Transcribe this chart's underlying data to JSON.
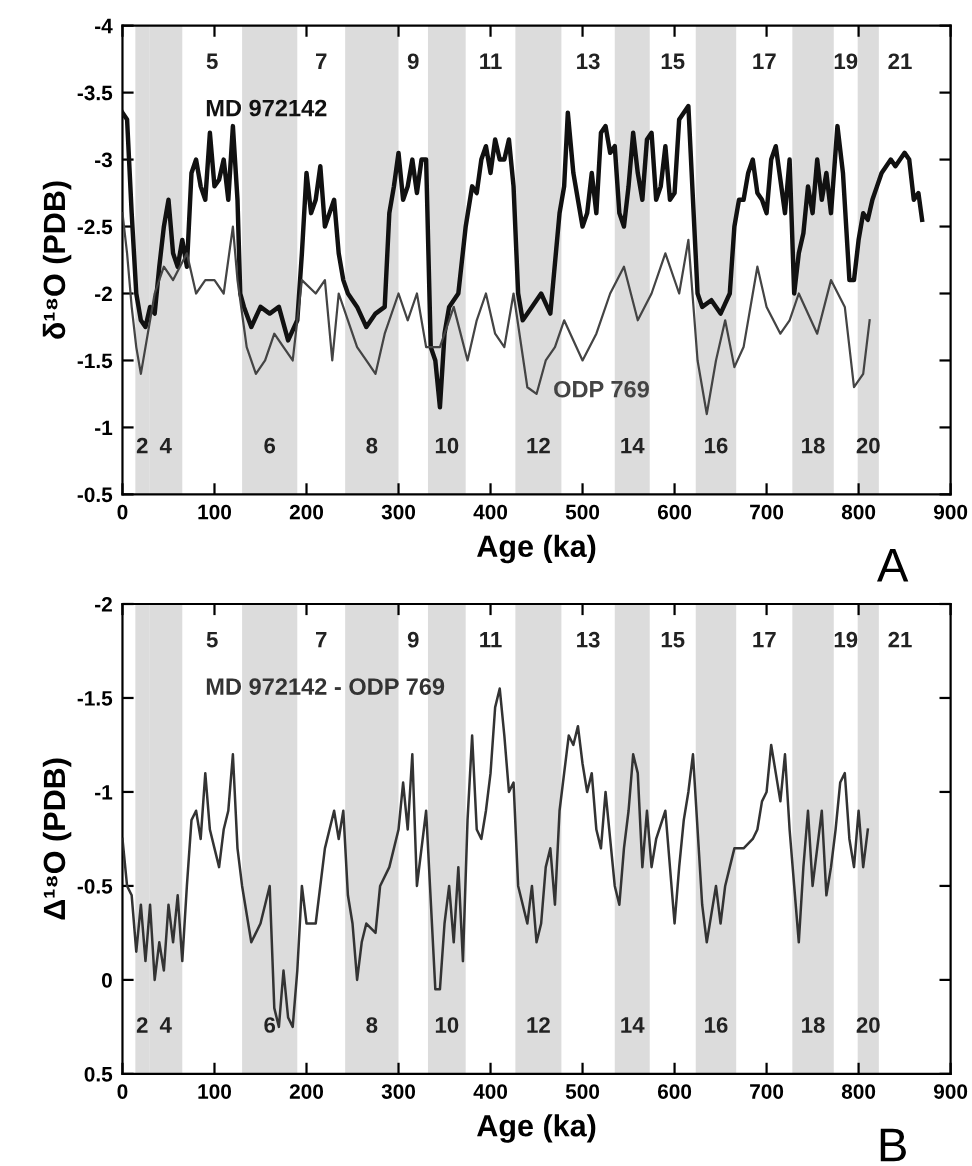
{
  "chart_data": [
    {
      "type": "line",
      "xlabel": "Age (ka)",
      "ylabel": "δ¹⁸O (PDB)",
      "xlim": [
        0,
        900
      ],
      "ylim": [
        -0.5,
        -4
      ],
      "xticks": [
        0,
        100,
        200,
        300,
        400,
        500,
        600,
        700,
        800,
        900
      ],
      "yticks": [
        -0.5,
        -1,
        -1.5,
        -2,
        -2.5,
        -3,
        -3.5,
        -4
      ],
      "grid": false,
      "legend": false,
      "series": [
        {
          "name": "MD 972142",
          "color": "#111111",
          "x": [
            0,
            5,
            10,
            15,
            20,
            25,
            30,
            35,
            40,
            45,
            50,
            55,
            60,
            65,
            70,
            75,
            80,
            85,
            90,
            95,
            100,
            105,
            110,
            115,
            120,
            125,
            128,
            132,
            140,
            150,
            160,
            170,
            180,
            190,
            195,
            200,
            205,
            210,
            215,
            220,
            225,
            230,
            235,
            240,
            245,
            255,
            265,
            275,
            285,
            290,
            295,
            300,
            305,
            310,
            315,
            320,
            325,
            330,
            335,
            340,
            345,
            350,
            355,
            365,
            373,
            380,
            385,
            390,
            395,
            400,
            405,
            410,
            415,
            420,
            425,
            430,
            435,
            445,
            455,
            465,
            475,
            480,
            484,
            490,
            495,
            500,
            505,
            510,
            515,
            520,
            525,
            530,
            535,
            540,
            545,
            550,
            555,
            560,
            565,
            570,
            575,
            580,
            585,
            590,
            595,
            600,
            605,
            610,
            615,
            620,
            625,
            630,
            640,
            650,
            660,
            665,
            670,
            675,
            680,
            685,
            690,
            695,
            700,
            705,
            710,
            715,
            720,
            725,
            730,
            735,
            740,
            745,
            750,
            755,
            760,
            765,
            770,
            777,
            783,
            790,
            795,
            800,
            805,
            810,
            815,
            820,
            825,
            830,
            835,
            840,
            845,
            850,
            855,
            860,
            865,
            869
          ],
          "values": [
            -3.35,
            -3.3,
            -2.6,
            -2.0,
            -1.8,
            -1.75,
            -1.9,
            -1.85,
            -2.2,
            -2.5,
            -2.7,
            -2.3,
            -2.2,
            -2.4,
            -2.2,
            -2.9,
            -3.0,
            -2.8,
            -2.7,
            -3.2,
            -2.8,
            -2.85,
            -3.0,
            -2.7,
            -3.25,
            -2.7,
            -2.0,
            -1.9,
            -1.75,
            -1.9,
            -1.85,
            -1.9,
            -1.65,
            -1.8,
            -2.3,
            -2.9,
            -2.6,
            -2.7,
            -2.95,
            -2.5,
            -2.6,
            -2.7,
            -2.3,
            -2.1,
            -2.0,
            -1.9,
            -1.75,
            -1.85,
            -1.9,
            -2.6,
            -2.8,
            -3.05,
            -2.7,
            -2.8,
            -3.0,
            -2.75,
            -3.0,
            -3.0,
            -1.6,
            -1.5,
            -1.15,
            -1.7,
            -1.9,
            -2.0,
            -2.5,
            -2.8,
            -2.75,
            -3.0,
            -3.1,
            -2.9,
            -3.15,
            -3.0,
            -3.0,
            -3.15,
            -2.8,
            -2.0,
            -1.8,
            -1.9,
            -2.0,
            -1.85,
            -2.6,
            -2.8,
            -3.35,
            -2.9,
            -2.7,
            -2.5,
            -2.6,
            -2.9,
            -2.6,
            -3.2,
            -3.25,
            -3.05,
            -3.1,
            -2.6,
            -2.5,
            -2.8,
            -3.2,
            -2.9,
            -2.7,
            -3.15,
            -3.2,
            -2.7,
            -2.8,
            -3.1,
            -2.7,
            -2.75,
            -3.3,
            -3.35,
            -3.4,
            -2.7,
            -2.0,
            -1.9,
            -1.95,
            -1.85,
            -2.0,
            -2.5,
            -2.7,
            -2.7,
            -2.9,
            -3.0,
            -2.75,
            -2.7,
            -2.6,
            -3.0,
            -3.1,
            -2.85,
            -2.6,
            -3.0,
            -2.0,
            -2.3,
            -2.45,
            -2.8,
            -2.6,
            -3.0,
            -2.7,
            -2.9,
            -2.6,
            -3.25,
            -2.9,
            -2.1,
            -2.1,
            -2.4,
            -2.6,
            -2.55,
            -2.7,
            -2.8,
            -2.9,
            -2.95,
            -3.0,
            -2.95,
            -3.0,
            -3.05,
            -3.0,
            -2.7,
            -2.75,
            -2.55
          ]
        },
        {
          "name": "ODP 769",
          "color": "#444444",
          "x": [
            0,
            5,
            10,
            15,
            20,
            25,
            35,
            45,
            55,
            70,
            80,
            90,
            100,
            110,
            120,
            125,
            135,
            145,
            155,
            165,
            175,
            185,
            195,
            210,
            220,
            228,
            235,
            245,
            255,
            265,
            275,
            285,
            300,
            310,
            320,
            330,
            345,
            360,
            375,
            385,
            395,
            405,
            415,
            425,
            440,
            450,
            460,
            470,
            480,
            500,
            515,
            530,
            545,
            560,
            575,
            590,
            605,
            615,
            625,
            635,
            645,
            655,
            665,
            675,
            690,
            700,
            715,
            725,
            735,
            755,
            770,
            785,
            795,
            805,
            812
          ],
          "values": [
            -2.6,
            -2.3,
            -1.9,
            -1.6,
            -1.4,
            -1.6,
            -2.0,
            -2.2,
            -2.1,
            -2.3,
            -2.0,
            -2.1,
            -2.1,
            -2.0,
            -2.5,
            -2.1,
            -1.6,
            -1.4,
            -1.5,
            -1.7,
            -1.6,
            -1.5,
            -2.1,
            -2.0,
            -2.1,
            -1.5,
            -2.0,
            -1.8,
            -1.6,
            -1.5,
            -1.4,
            -1.7,
            -2.0,
            -1.8,
            -2.0,
            -1.6,
            -1.6,
            -1.9,
            -1.5,
            -1.8,
            -2.0,
            -1.7,
            -1.6,
            -2.0,
            -1.3,
            -1.25,
            -1.5,
            -1.6,
            -1.8,
            -1.5,
            -1.7,
            -2.0,
            -2.2,
            -1.8,
            -2.0,
            -2.3,
            -2.0,
            -2.4,
            -1.5,
            -1.1,
            -1.5,
            -1.8,
            -1.45,
            -1.6,
            -2.2,
            -1.9,
            -1.7,
            -1.8,
            -2.0,
            -1.7,
            -2.1,
            -1.9,
            -1.3,
            -1.4,
            -1.8
          ]
        }
      ],
      "bands": [
        {
          "axis": "x",
          "from": 14,
          "to": 29,
          "label": "2",
          "color": "#dcdcdc"
        },
        {
          "axis": "x",
          "from": 29,
          "to": 65,
          "label": "4",
          "color": "#dcdcdc"
        },
        {
          "axis": "x",
          "from": 130,
          "to": 190,
          "label": "6",
          "color": "#dcdcdc"
        },
        {
          "axis": "x",
          "from": 242,
          "to": 300,
          "label": "8",
          "color": "#dcdcdc"
        },
        {
          "axis": "x",
          "from": 332,
          "to": 373,
          "label": "10",
          "color": "#dcdcdc"
        },
        {
          "axis": "x",
          "from": 427,
          "to": 477,
          "label": "12",
          "color": "#dcdcdc"
        },
        {
          "axis": "x",
          "from": 535,
          "to": 573,
          "label": "14",
          "color": "#dcdcdc"
        },
        {
          "axis": "x",
          "from": 623,
          "to": 667,
          "label": "16",
          "color": "#dcdcdc"
        },
        {
          "axis": "x",
          "from": 728,
          "to": 773,
          "label": "18",
          "color": "#dcdcdc"
        },
        {
          "axis": "x",
          "from": 799,
          "to": 822,
          "label": "20",
          "color": "#dcdcdc"
        }
      ],
      "annotations": [
        "5",
        "7",
        "9",
        "11",
        "13",
        "15",
        "17",
        "19",
        "21",
        "A"
      ]
    },
    {
      "type": "line",
      "xlabel": "Age (ka)",
      "ylabel": "Δ¹⁸O (PDB)",
      "xlim": [
        0,
        900
      ],
      "ylim": [
        0.5,
        -2
      ],
      "xticks": [
        0,
        100,
        200,
        300,
        400,
        500,
        600,
        700,
        800,
        900
      ],
      "yticks": [
        0.5,
        0,
        -0.5,
        -1,
        -1.5,
        -2
      ],
      "grid": false,
      "legend": false,
      "series": [
        {
          "name": "MD 972142 - ODP 769",
          "color": "#333333",
          "x": [
            0,
            5,
            10,
            15,
            20,
            25,
            30,
            35,
            40,
            45,
            50,
            55,
            60,
            65,
            70,
            75,
            80,
            85,
            90,
            95,
            100,
            105,
            110,
            115,
            120,
            125,
            130,
            140,
            150,
            160,
            165,
            170,
            175,
            180,
            185,
            190,
            195,
            200,
            210,
            220,
            230,
            235,
            240,
            245,
            250,
            255,
            260,
            265,
            275,
            280,
            290,
            300,
            305,
            310,
            315,
            320,
            330,
            340,
            345,
            350,
            355,
            360,
            365,
            370,
            375,
            380,
            385,
            390,
            395,
            400,
            405,
            410,
            415,
            420,
            425,
            430,
            440,
            445,
            450,
            455,
            460,
            465,
            470,
            475,
            480,
            485,
            490,
            495,
            500,
            505,
            510,
            515,
            520,
            525,
            530,
            535,
            540,
            545,
            550,
            555,
            560,
            565,
            570,
            575,
            580,
            590,
            600,
            605,
            610,
            615,
            620,
            625,
            630,
            635,
            640,
            645,
            650,
            655,
            660,
            665,
            675,
            685,
            690,
            695,
            700,
            705,
            710,
            715,
            720,
            725,
            730,
            735,
            740,
            745,
            750,
            755,
            760,
            765,
            770,
            775,
            780,
            785,
            790,
            795,
            800,
            805,
            810
          ],
          "values": [
            -0.75,
            -0.5,
            -0.45,
            -0.15,
            -0.4,
            -0.1,
            -0.4,
            0.0,
            -0.2,
            -0.05,
            -0.4,
            -0.2,
            -0.45,
            -0.1,
            -0.5,
            -0.85,
            -0.9,
            -0.75,
            -1.1,
            -0.8,
            -0.7,
            -0.6,
            -0.8,
            -0.9,
            -1.2,
            -0.7,
            -0.5,
            -0.2,
            -0.3,
            -0.5,
            0.15,
            0.25,
            -0.05,
            0.2,
            0.25,
            -0.05,
            -0.5,
            -0.3,
            -0.3,
            -0.7,
            -0.9,
            -0.75,
            -0.9,
            -0.45,
            -0.3,
            0.0,
            -0.2,
            -0.3,
            -0.25,
            -0.5,
            -0.6,
            -0.8,
            -1.05,
            -0.8,
            -1.2,
            -0.5,
            -0.9,
            0.05,
            0.05,
            -0.3,
            -0.5,
            -0.2,
            -0.6,
            -0.1,
            -0.85,
            -1.3,
            -0.8,
            -0.75,
            -0.9,
            -1.1,
            -1.45,
            -1.55,
            -1.3,
            -1.0,
            -1.05,
            -0.5,
            -0.3,
            -0.5,
            -0.2,
            -0.3,
            -0.6,
            -0.7,
            -0.4,
            -0.9,
            -1.1,
            -1.3,
            -1.25,
            -1.35,
            -1.15,
            -1.0,
            -1.1,
            -0.8,
            -0.7,
            -1.0,
            -0.75,
            -0.5,
            -0.4,
            -0.7,
            -0.9,
            -1.2,
            -1.1,
            -0.6,
            -0.9,
            -0.6,
            -0.75,
            -0.9,
            -0.3,
            -0.6,
            -0.85,
            -1.0,
            -1.2,
            -0.8,
            -0.4,
            -0.2,
            -0.35,
            -0.5,
            -0.3,
            -0.5,
            -0.6,
            -0.7,
            -0.7,
            -0.75,
            -0.8,
            -0.95,
            -1.0,
            -1.25,
            -1.1,
            -0.95,
            -1.2,
            -0.8,
            -0.5,
            -0.2,
            -0.6,
            -0.9,
            -0.5,
            -0.7,
            -0.9,
            -0.45,
            -0.6,
            -0.8,
            -1.05,
            -1.1,
            -0.75,
            -0.6,
            -0.9,
            -0.6,
            -0.8
          ]
        }
      ],
      "bands": [
        {
          "axis": "x",
          "from": 14,
          "to": 29,
          "label": "2",
          "color": "#dcdcdc"
        },
        {
          "axis": "x",
          "from": 29,
          "to": 65,
          "label": "4",
          "color": "#dcdcdc"
        },
        {
          "axis": "x",
          "from": 130,
          "to": 190,
          "label": "6",
          "color": "#dcdcdc"
        },
        {
          "axis": "x",
          "from": 242,
          "to": 300,
          "label": "8",
          "color": "#dcdcdc"
        },
        {
          "axis": "x",
          "from": 332,
          "to": 373,
          "label": "10",
          "color": "#dcdcdc"
        },
        {
          "axis": "x",
          "from": 427,
          "to": 477,
          "label": "12",
          "color": "#dcdcdc"
        },
        {
          "axis": "x",
          "from": 535,
          "to": 573,
          "label": "14",
          "color": "#dcdcdc"
        },
        {
          "axis": "x",
          "from": 623,
          "to": 667,
          "label": "16",
          "color": "#dcdcdc"
        },
        {
          "axis": "x",
          "from": 728,
          "to": 773,
          "label": "18",
          "color": "#dcdcdc"
        },
        {
          "axis": "x",
          "from": 799,
          "to": 822,
          "label": "20",
          "color": "#dcdcdc"
        }
      ],
      "annotations": [
        "5",
        "7",
        "9",
        "11",
        "13",
        "15",
        "17",
        "19",
        "21",
        "B"
      ]
    }
  ]
}
